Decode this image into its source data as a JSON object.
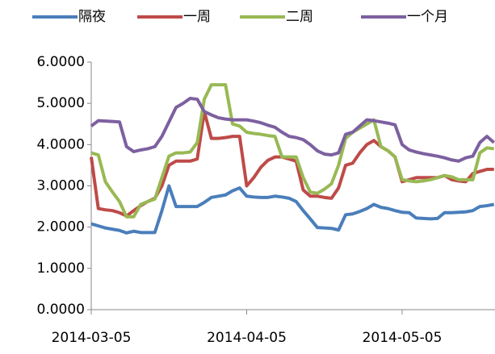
{
  "chart_data": {
    "type": "line",
    "categories": [
      "2014-03-05",
      null,
      null,
      null,
      null,
      null,
      null,
      null,
      null,
      null,
      null,
      null,
      null,
      null,
      null,
      null,
      null,
      null,
      null,
      null,
      null,
      null,
      "2014-04-05",
      null,
      null,
      null,
      null,
      null,
      null,
      null,
      null,
      null,
      null,
      null,
      null,
      null,
      null,
      null,
      null,
      null,
      null,
      null,
      null,
      null,
      "2014-05-05",
      null,
      null,
      null,
      null,
      null,
      null,
      null,
      null,
      null,
      null,
      null,
      null,
      null
    ],
    "series": [
      {
        "name": "隔夜",
        "color": "#4a7ebb",
        "values": [
          2.08,
          2.03,
          1.98,
          1.95,
          1.92,
          1.86,
          1.9,
          1.87,
          1.87,
          1.87,
          2.4,
          3.0,
          2.5,
          2.5,
          2.5,
          2.5,
          2.6,
          2.72,
          2.75,
          2.78,
          2.88,
          2.95,
          2.75,
          2.73,
          2.72,
          2.72,
          2.75,
          2.73,
          2.7,
          2.62,
          2.4,
          2.2,
          1.99,
          1.98,
          1.97,
          1.93,
          2.3,
          2.32,
          2.38,
          2.45,
          2.55,
          2.48,
          2.45,
          2.4,
          2.36,
          2.35,
          2.22,
          2.21,
          2.2,
          2.21,
          2.35,
          2.35,
          2.36,
          2.37,
          2.4,
          2.5,
          2.52,
          2.55
        ]
      },
      {
        "name": "一周",
        "color": "#be4b48",
        "values": [
          3.7,
          2.45,
          2.42,
          2.4,
          2.35,
          2.27,
          2.4,
          2.52,
          2.62,
          2.7,
          3.0,
          3.5,
          3.6,
          3.6,
          3.6,
          3.65,
          4.8,
          4.15,
          4.15,
          4.17,
          4.2,
          4.2,
          3.0,
          3.2,
          3.45,
          3.62,
          3.7,
          3.7,
          3.65,
          3.6,
          2.9,
          2.75,
          2.75,
          2.72,
          2.7,
          2.95,
          3.5,
          3.55,
          3.8,
          4.0,
          4.1,
          3.95,
          3.85,
          3.7,
          3.1,
          3.15,
          3.2,
          3.2,
          3.2,
          3.2,
          3.25,
          3.15,
          3.12,
          3.1,
          3.3,
          3.35,
          3.4,
          3.4
        ]
      },
      {
        "name": "二周",
        "color": "#98b954",
        "values": [
          3.8,
          3.75,
          3.1,
          2.85,
          2.62,
          2.25,
          2.25,
          2.55,
          2.62,
          2.68,
          3.2,
          3.72,
          3.8,
          3.8,
          3.82,
          4.05,
          5.1,
          5.45,
          5.45,
          5.45,
          4.5,
          4.45,
          4.3,
          4.27,
          4.25,
          4.22,
          4.2,
          3.7,
          3.7,
          3.7,
          3.2,
          2.85,
          2.82,
          2.92,
          3.05,
          3.5,
          4.15,
          4.3,
          4.4,
          4.5,
          4.6,
          3.95,
          3.85,
          3.7,
          3.15,
          3.12,
          3.1,
          3.12,
          3.15,
          3.2,
          3.25,
          3.22,
          3.15,
          3.15,
          3.15,
          3.8,
          3.92,
          3.9
        ]
      },
      {
        "name": "一个月",
        "color": "#7d60a0",
        "values": [
          4.45,
          4.58,
          4.57,
          4.56,
          4.55,
          3.95,
          3.83,
          3.87,
          3.9,
          3.95,
          4.2,
          4.55,
          4.9,
          5.0,
          5.12,
          5.1,
          4.8,
          4.72,
          4.65,
          4.62,
          4.6,
          4.6,
          4.6,
          4.57,
          4.53,
          4.47,
          4.42,
          4.3,
          4.2,
          4.17,
          4.12,
          4.0,
          3.85,
          3.77,
          3.75,
          3.8,
          4.25,
          4.3,
          4.45,
          4.6,
          4.58,
          4.55,
          4.52,
          4.48,
          4.0,
          3.87,
          3.82,
          3.78,
          3.75,
          3.72,
          3.68,
          3.63,
          3.6,
          3.68,
          3.72,
          4.05,
          4.2,
          4.05
        ]
      }
    ],
    "ylim": [
      0,
      6
    ],
    "yticks": [
      {
        "value": 0,
        "label": "0.0000"
      },
      {
        "value": 1,
        "label": "1.0000"
      },
      {
        "value": 2,
        "label": "2.0000"
      },
      {
        "value": 3,
        "label": "3.0000"
      },
      {
        "value": 4,
        "label": "4.0000"
      },
      {
        "value": 5,
        "label": "5.0000"
      },
      {
        "value": 6,
        "label": "6.0000"
      }
    ],
    "grid": false
  }
}
